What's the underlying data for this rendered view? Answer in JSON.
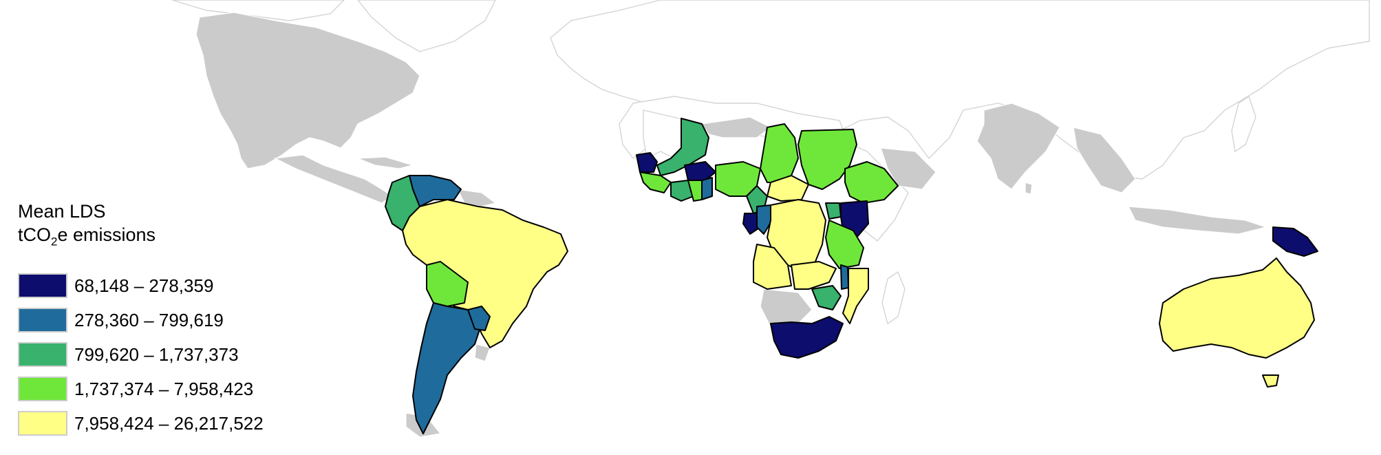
{
  "legend": {
    "title_line1": "Mean LDS",
    "title_line2_prefix": "tCO",
    "title_line2_sub": "2",
    "title_line2_suffix": "e emissions",
    "classes": [
      {
        "label": "68,148 – 278,359",
        "color": "#0d0d6e"
      },
      {
        "label": "278,360 – 799,619",
        "color": "#1f6b9c"
      },
      {
        "label": "799,620 – 1,737,373",
        "color": "#38b26c"
      },
      {
        "label": "1,737,374 – 7,958,423",
        "color": "#6fe73a"
      },
      {
        "label": "7,958,424 – 26,217,522",
        "color": "#ffff86"
      }
    ]
  },
  "colors": {
    "background": "#ffffff",
    "no_data_land": "#cbcbcb",
    "border": "#000000",
    "outline_land": "#d4d4d4"
  }
}
